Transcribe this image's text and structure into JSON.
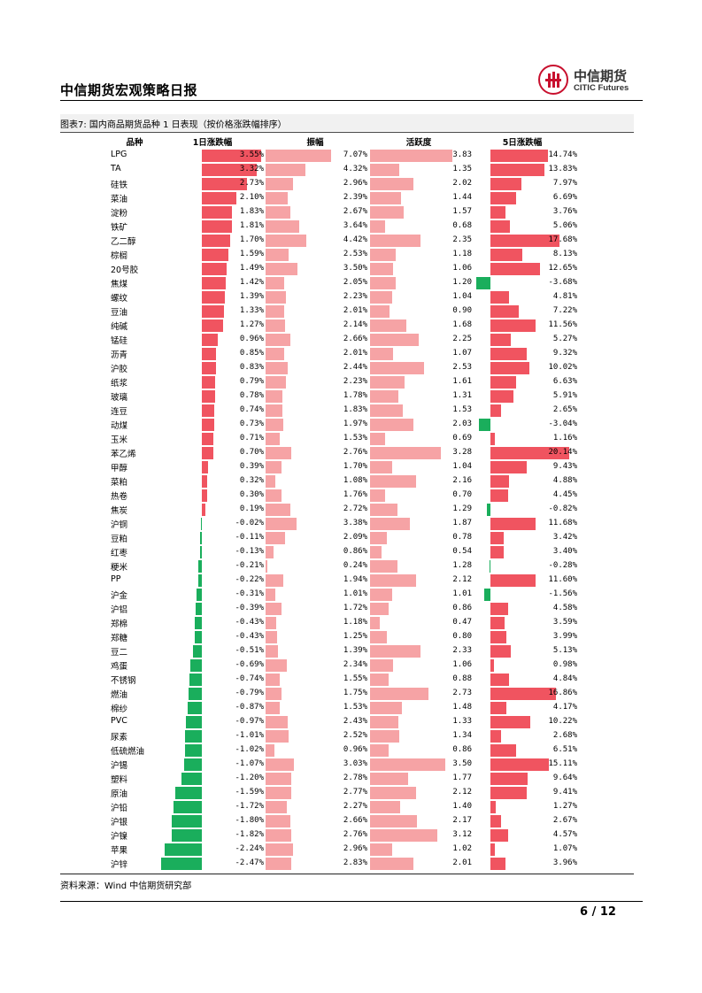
{
  "header": {
    "title": "中信期货宏观策略日报",
    "logo_cn": "中信期货",
    "logo_en": "CITIC Futures"
  },
  "figure": {
    "title": "图表7:  国内商品期货品种 1 日表现（按价格涨跌幅排序）",
    "columns": [
      "品种",
      "1日涨跌幅",
      "振幅",
      "活跃度",
      "5日涨跌幅"
    ],
    "source": "资料来源：Wind  中信期货研究部"
  },
  "colors": {
    "up": "#f05460",
    "down": "#1aae5c",
    "light": "#f6a3a5",
    "accent": "#c8102e"
  },
  "chart_data": {
    "type": "table",
    "rows": [
      {
        "name": "LPG",
        "chg1": "3.55%",
        "amp": "7.07%",
        "act": "3.83",
        "chg5": "14.74%"
      },
      {
        "name": "TA",
        "chg1": "3.32%",
        "amp": "4.32%",
        "act": "1.35",
        "chg5": "13.83%"
      },
      {
        "name": "硅铁",
        "chg1": "2.73%",
        "amp": "2.96%",
        "act": "2.02",
        "chg5": "7.97%"
      },
      {
        "name": "菜油",
        "chg1": "2.10%",
        "amp": "2.39%",
        "act": "1.44",
        "chg5": "6.69%"
      },
      {
        "name": "淀粉",
        "chg1": "1.83%",
        "amp": "2.67%",
        "act": "1.57",
        "chg5": "3.76%"
      },
      {
        "name": "铁矿",
        "chg1": "1.81%",
        "amp": "3.64%",
        "act": "0.68",
        "chg5": "5.06%"
      },
      {
        "name": "乙二醇",
        "chg1": "1.70%",
        "amp": "4.42%",
        "act": "2.35",
        "chg5": "17.68%"
      },
      {
        "name": "棕榈",
        "chg1": "1.59%",
        "amp": "2.53%",
        "act": "1.18",
        "chg5": "8.13%"
      },
      {
        "name": "20号胶",
        "chg1": "1.49%",
        "amp": "3.50%",
        "act": "1.06",
        "chg5": "12.65%"
      },
      {
        "name": "焦煤",
        "chg1": "1.42%",
        "amp": "2.05%",
        "act": "1.20",
        "chg5": "-3.68%"
      },
      {
        "name": "螺纹",
        "chg1": "1.39%",
        "amp": "2.23%",
        "act": "1.04",
        "chg5": "4.81%"
      },
      {
        "name": "豆油",
        "chg1": "1.33%",
        "amp": "2.01%",
        "act": "0.90",
        "chg5": "7.22%"
      },
      {
        "name": "纯碱",
        "chg1": "1.27%",
        "amp": "2.14%",
        "act": "1.68",
        "chg5": "11.56%"
      },
      {
        "name": "锰硅",
        "chg1": "0.96%",
        "amp": "2.66%",
        "act": "2.25",
        "chg5": "5.27%"
      },
      {
        "name": "沥青",
        "chg1": "0.85%",
        "amp": "2.01%",
        "act": "1.07",
        "chg5": "9.32%"
      },
      {
        "name": "沪胶",
        "chg1": "0.83%",
        "amp": "2.44%",
        "act": "2.53",
        "chg5": "10.02%"
      },
      {
        "name": "纸浆",
        "chg1": "0.79%",
        "amp": "2.23%",
        "act": "1.61",
        "chg5": "6.63%"
      },
      {
        "name": "玻璃",
        "chg1": "0.78%",
        "amp": "1.78%",
        "act": "1.31",
        "chg5": "5.91%"
      },
      {
        "name": "连豆",
        "chg1": "0.74%",
        "amp": "1.83%",
        "act": "1.53",
        "chg5": "2.65%"
      },
      {
        "name": "动煤",
        "chg1": "0.73%",
        "amp": "1.97%",
        "act": "2.03",
        "chg5": "-3.04%"
      },
      {
        "name": "玉米",
        "chg1": "0.71%",
        "amp": "1.53%",
        "act": "0.69",
        "chg5": "1.16%"
      },
      {
        "name": "苯乙烯",
        "chg1": "0.70%",
        "amp": "2.76%",
        "act": "3.28",
        "chg5": "20.14%"
      },
      {
        "name": "甲醇",
        "chg1": "0.39%",
        "amp": "1.70%",
        "act": "1.04",
        "chg5": "9.43%"
      },
      {
        "name": "菜粕",
        "chg1": "0.32%",
        "amp": "1.08%",
        "act": "2.16",
        "chg5": "4.88%"
      },
      {
        "name": "热卷",
        "chg1": "0.30%",
        "amp": "1.76%",
        "act": "0.70",
        "chg5": "4.45%"
      },
      {
        "name": "焦炭",
        "chg1": "0.19%",
        "amp": "2.72%",
        "act": "1.29",
        "chg5": "-0.82%"
      },
      {
        "name": "沪铜",
        "chg1": "-0.02%",
        "amp": "3.38%",
        "act": "1.87",
        "chg5": "11.68%"
      },
      {
        "name": "豆粕",
        "chg1": "-0.11%",
        "amp": "2.09%",
        "act": "0.78",
        "chg5": "3.42%"
      },
      {
        "name": "红枣",
        "chg1": "-0.13%",
        "amp": "0.86%",
        "act": "0.54",
        "chg5": "3.40%"
      },
      {
        "name": "粳米",
        "chg1": "-0.21%",
        "amp": "0.24%",
        "act": "1.28",
        "chg5": "-0.28%"
      },
      {
        "name": "PP",
        "chg1": "-0.22%",
        "amp": "1.94%",
        "act": "2.12",
        "chg5": "11.60%"
      },
      {
        "name": "沪金",
        "chg1": "-0.31%",
        "amp": "1.01%",
        "act": "1.01",
        "chg5": "-1.56%"
      },
      {
        "name": "沪铝",
        "chg1": "-0.39%",
        "amp": "1.72%",
        "act": "0.86",
        "chg5": "4.58%"
      },
      {
        "name": "郑棉",
        "chg1": "-0.43%",
        "amp": "1.18%",
        "act": "0.47",
        "chg5": "3.59%"
      },
      {
        "name": "郑糖",
        "chg1": "-0.43%",
        "amp": "1.25%",
        "act": "0.80",
        "chg5": "3.99%"
      },
      {
        "name": "豆二",
        "chg1": "-0.51%",
        "amp": "1.39%",
        "act": "2.33",
        "chg5": "5.13%"
      },
      {
        "name": "鸡蛋",
        "chg1": "-0.69%",
        "amp": "2.34%",
        "act": "1.06",
        "chg5": "0.98%"
      },
      {
        "name": "不锈钢",
        "chg1": "-0.74%",
        "amp": "1.55%",
        "act": "0.88",
        "chg5": "4.84%"
      },
      {
        "name": "燃油",
        "chg1": "-0.79%",
        "amp": "1.75%",
        "act": "2.73",
        "chg5": "16.86%"
      },
      {
        "name": "棉纱",
        "chg1": "-0.87%",
        "amp": "1.53%",
        "act": "1.48",
        "chg5": "4.17%"
      },
      {
        "name": "PVC",
        "chg1": "-0.97%",
        "amp": "2.43%",
        "act": "1.33",
        "chg5": "10.22%"
      },
      {
        "name": "尿素",
        "chg1": "-1.01%",
        "amp": "2.52%",
        "act": "1.34",
        "chg5": "2.68%"
      },
      {
        "name": "低硫燃油",
        "chg1": "-1.02%",
        "amp": "0.96%",
        "act": "0.86",
        "chg5": "6.51%"
      },
      {
        "name": "沪锡",
        "chg1": "-1.07%",
        "amp": "3.03%",
        "act": "3.50",
        "chg5": "15.11%"
      },
      {
        "name": "塑料",
        "chg1": "-1.20%",
        "amp": "2.78%",
        "act": "1.77",
        "chg5": "9.64%"
      },
      {
        "name": "原油",
        "chg1": "-1.59%",
        "amp": "2.77%",
        "act": "2.12",
        "chg5": "9.41%"
      },
      {
        "name": "沪铅",
        "chg1": "-1.72%",
        "amp": "2.27%",
        "act": "1.40",
        "chg5": "1.27%"
      },
      {
        "name": "沪银",
        "chg1": "-1.80%",
        "amp": "2.66%",
        "act": "2.17",
        "chg5": "2.67%"
      },
      {
        "name": "沪镍",
        "chg1": "-1.82%",
        "amp": "2.76%",
        "act": "3.12",
        "chg5": "4.57%"
      },
      {
        "name": "苹果",
        "chg1": "-2.24%",
        "amp": "2.96%",
        "act": "1.02",
        "chg5": "1.07%"
      },
      {
        "name": "沪锌",
        "chg1": "-2.47%",
        "amp": "2.83%",
        "act": "2.01",
        "chg5": "3.96%"
      }
    ]
  },
  "footer": {
    "page": "6  /  12"
  }
}
